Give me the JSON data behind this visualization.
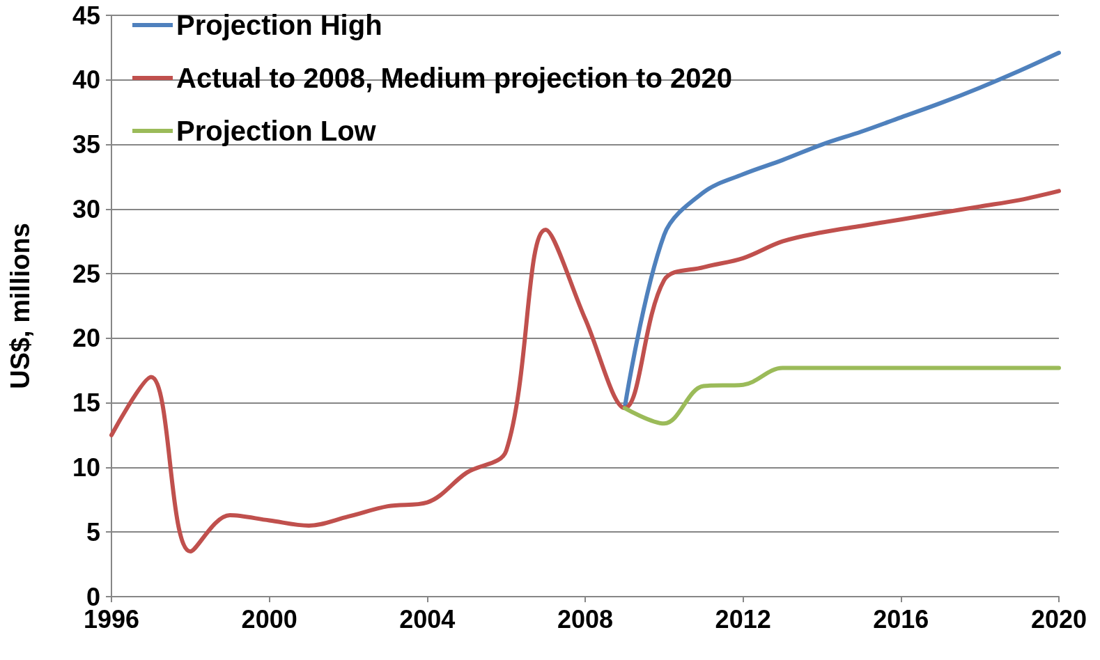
{
  "chart_data": {
    "type": "line",
    "ylabel": "US$, millions",
    "xlim": [
      1996,
      2020
    ],
    "xticks": [
      1996,
      2000,
      2004,
      2008,
      2012,
      2016,
      2020
    ],
    "ylim": [
      0,
      45
    ],
    "yticks": [
      0,
      5,
      10,
      15,
      20,
      25,
      30,
      35,
      40,
      45
    ],
    "grid": "y",
    "legend": "top left",
    "marker": "none",
    "line_style": "solid",
    "series": [
      {
        "name": "Projection High",
        "color": "#4f81bd",
        "x": [
          2009,
          2010,
          2011,
          2012,
          2013,
          2014,
          2015,
          2016,
          2017,
          2018,
          2019,
          2020
        ],
        "values": [
          14.6,
          28,
          31.3,
          32.7,
          33.8,
          35,
          36,
          37.1,
          38.2,
          39.4,
          40.7,
          42.1
        ]
      },
      {
        "name": "Actual to 2008, Medium projection to 2020",
        "color": "#c0504d",
        "x": [
          1996,
          1997,
          1998,
          1999,
          2000,
          2001,
          2002,
          2003,
          2004,
          2005,
          2006,
          2007,
          2008,
          2009,
          2010,
          2011,
          2012,
          2013,
          2014,
          2015,
          2016,
          2017,
          2018,
          2019,
          2020
        ],
        "values": [
          12.5,
          17,
          3.5,
          6.3,
          5.9,
          5.5,
          6.2,
          7,
          7.3,
          9.6,
          11.3,
          28.4,
          21.5,
          14.6,
          24.5,
          25.5,
          26.2,
          27.5,
          28.2,
          28.7,
          29.2,
          29.7,
          30.2,
          30.7,
          31.4
        ]
      },
      {
        "name": "Projection Low",
        "color": "#9bbb59",
        "x": [
          2009,
          2010,
          2011,
          2012,
          2013,
          2014,
          2015,
          2016,
          2017,
          2018,
          2019,
          2020
        ],
        "values": [
          14.6,
          13.4,
          16.3,
          16.4,
          17.7,
          17.7,
          17.7,
          17.7,
          17.7,
          17.7,
          17.7,
          17.7
        ]
      }
    ]
  }
}
